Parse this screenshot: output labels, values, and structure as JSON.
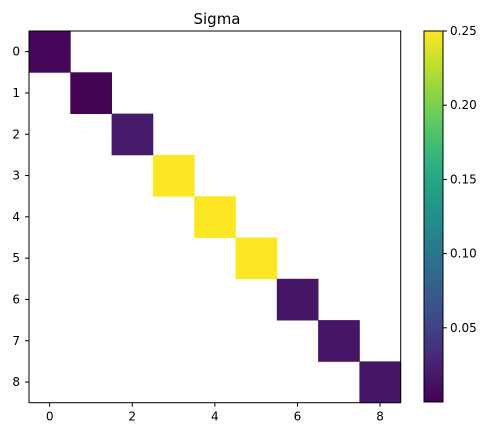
{
  "chart_data": {
    "type": "heatmap",
    "title": "Sigma",
    "xlabel": "",
    "ylabel": "",
    "rows": 9,
    "cols": 9,
    "x_ticks": [
      0,
      2,
      4,
      6,
      8
    ],
    "y_ticks": [
      0,
      1,
      2,
      3,
      4,
      5,
      6,
      7,
      8
    ],
    "missing_color": "#ffffff",
    "colormap": "viridis",
    "color_range": [
      0.0,
      0.25
    ],
    "colorbar_ticks": [
      0.05,
      0.1,
      0.15,
      0.2,
      0.25
    ],
    "colorbar_tick_labels": [
      "0.05",
      "0.10",
      "0.15",
      "0.20",
      "0.25"
    ],
    "cells": [
      {
        "row": 0,
        "col": 0,
        "value": 0.004
      },
      {
        "row": 1,
        "col": 1,
        "value": 0.002
      },
      {
        "row": 2,
        "col": 2,
        "value": 0.02
      },
      {
        "row": 3,
        "col": 3,
        "value": 0.25
      },
      {
        "row": 4,
        "col": 4,
        "value": 0.25
      },
      {
        "row": 5,
        "col": 5,
        "value": 0.25
      },
      {
        "row": 6,
        "col": 6,
        "value": 0.015
      },
      {
        "row": 7,
        "col": 7,
        "value": 0.015
      },
      {
        "row": 8,
        "col": 8,
        "value": 0.015
      }
    ]
  }
}
